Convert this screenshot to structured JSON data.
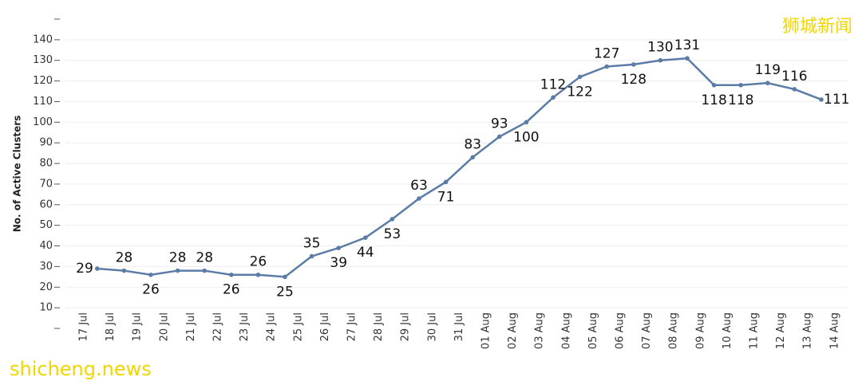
{
  "chart_data": {
    "type": "line",
    "y_label": "No. of Active Clusters",
    "annotations": [
      "狮城新闻",
      "shicheng.news"
    ],
    "categories": [
      "17 Jul",
      "18 Jul",
      "19 Jul",
      "20 Jul",
      "21 Jul",
      "22 Jul",
      "23 Jul",
      "24 Jul",
      "25 Jul",
      "26 Jul",
      "27 Jul",
      "28 Jul",
      "29 Jul",
      "30 Jul",
      "31 Jul",
      "01 Aug",
      "02 Aug",
      "03 Aug",
      "04 Aug",
      "05 Aug",
      "06 Aug",
      "07 Aug",
      "08 Aug",
      "09 Aug",
      "10 Aug",
      "11 Aug",
      "12 Aug",
      "13 Aug",
      "14 Aug"
    ],
    "series": [
      {
        "name": "Active Clusters",
        "color": "#5a7ca6",
        "values": [
          null,
          29,
          28,
          26,
          28,
          28,
          26,
          26,
          25,
          35,
          39,
          44,
          53,
          63,
          71,
          83,
          93,
          100,
          112,
          122,
          127,
          128,
          130,
          131,
          118,
          118,
          119,
          116,
          111
        ]
      }
    ],
    "ylim": [
      0,
      150
    ],
    "yticks": [
      10,
      20,
      30,
      40,
      50,
      60,
      70,
      80,
      90,
      100,
      110,
      120,
      130,
      140
    ],
    "grid": true
  }
}
